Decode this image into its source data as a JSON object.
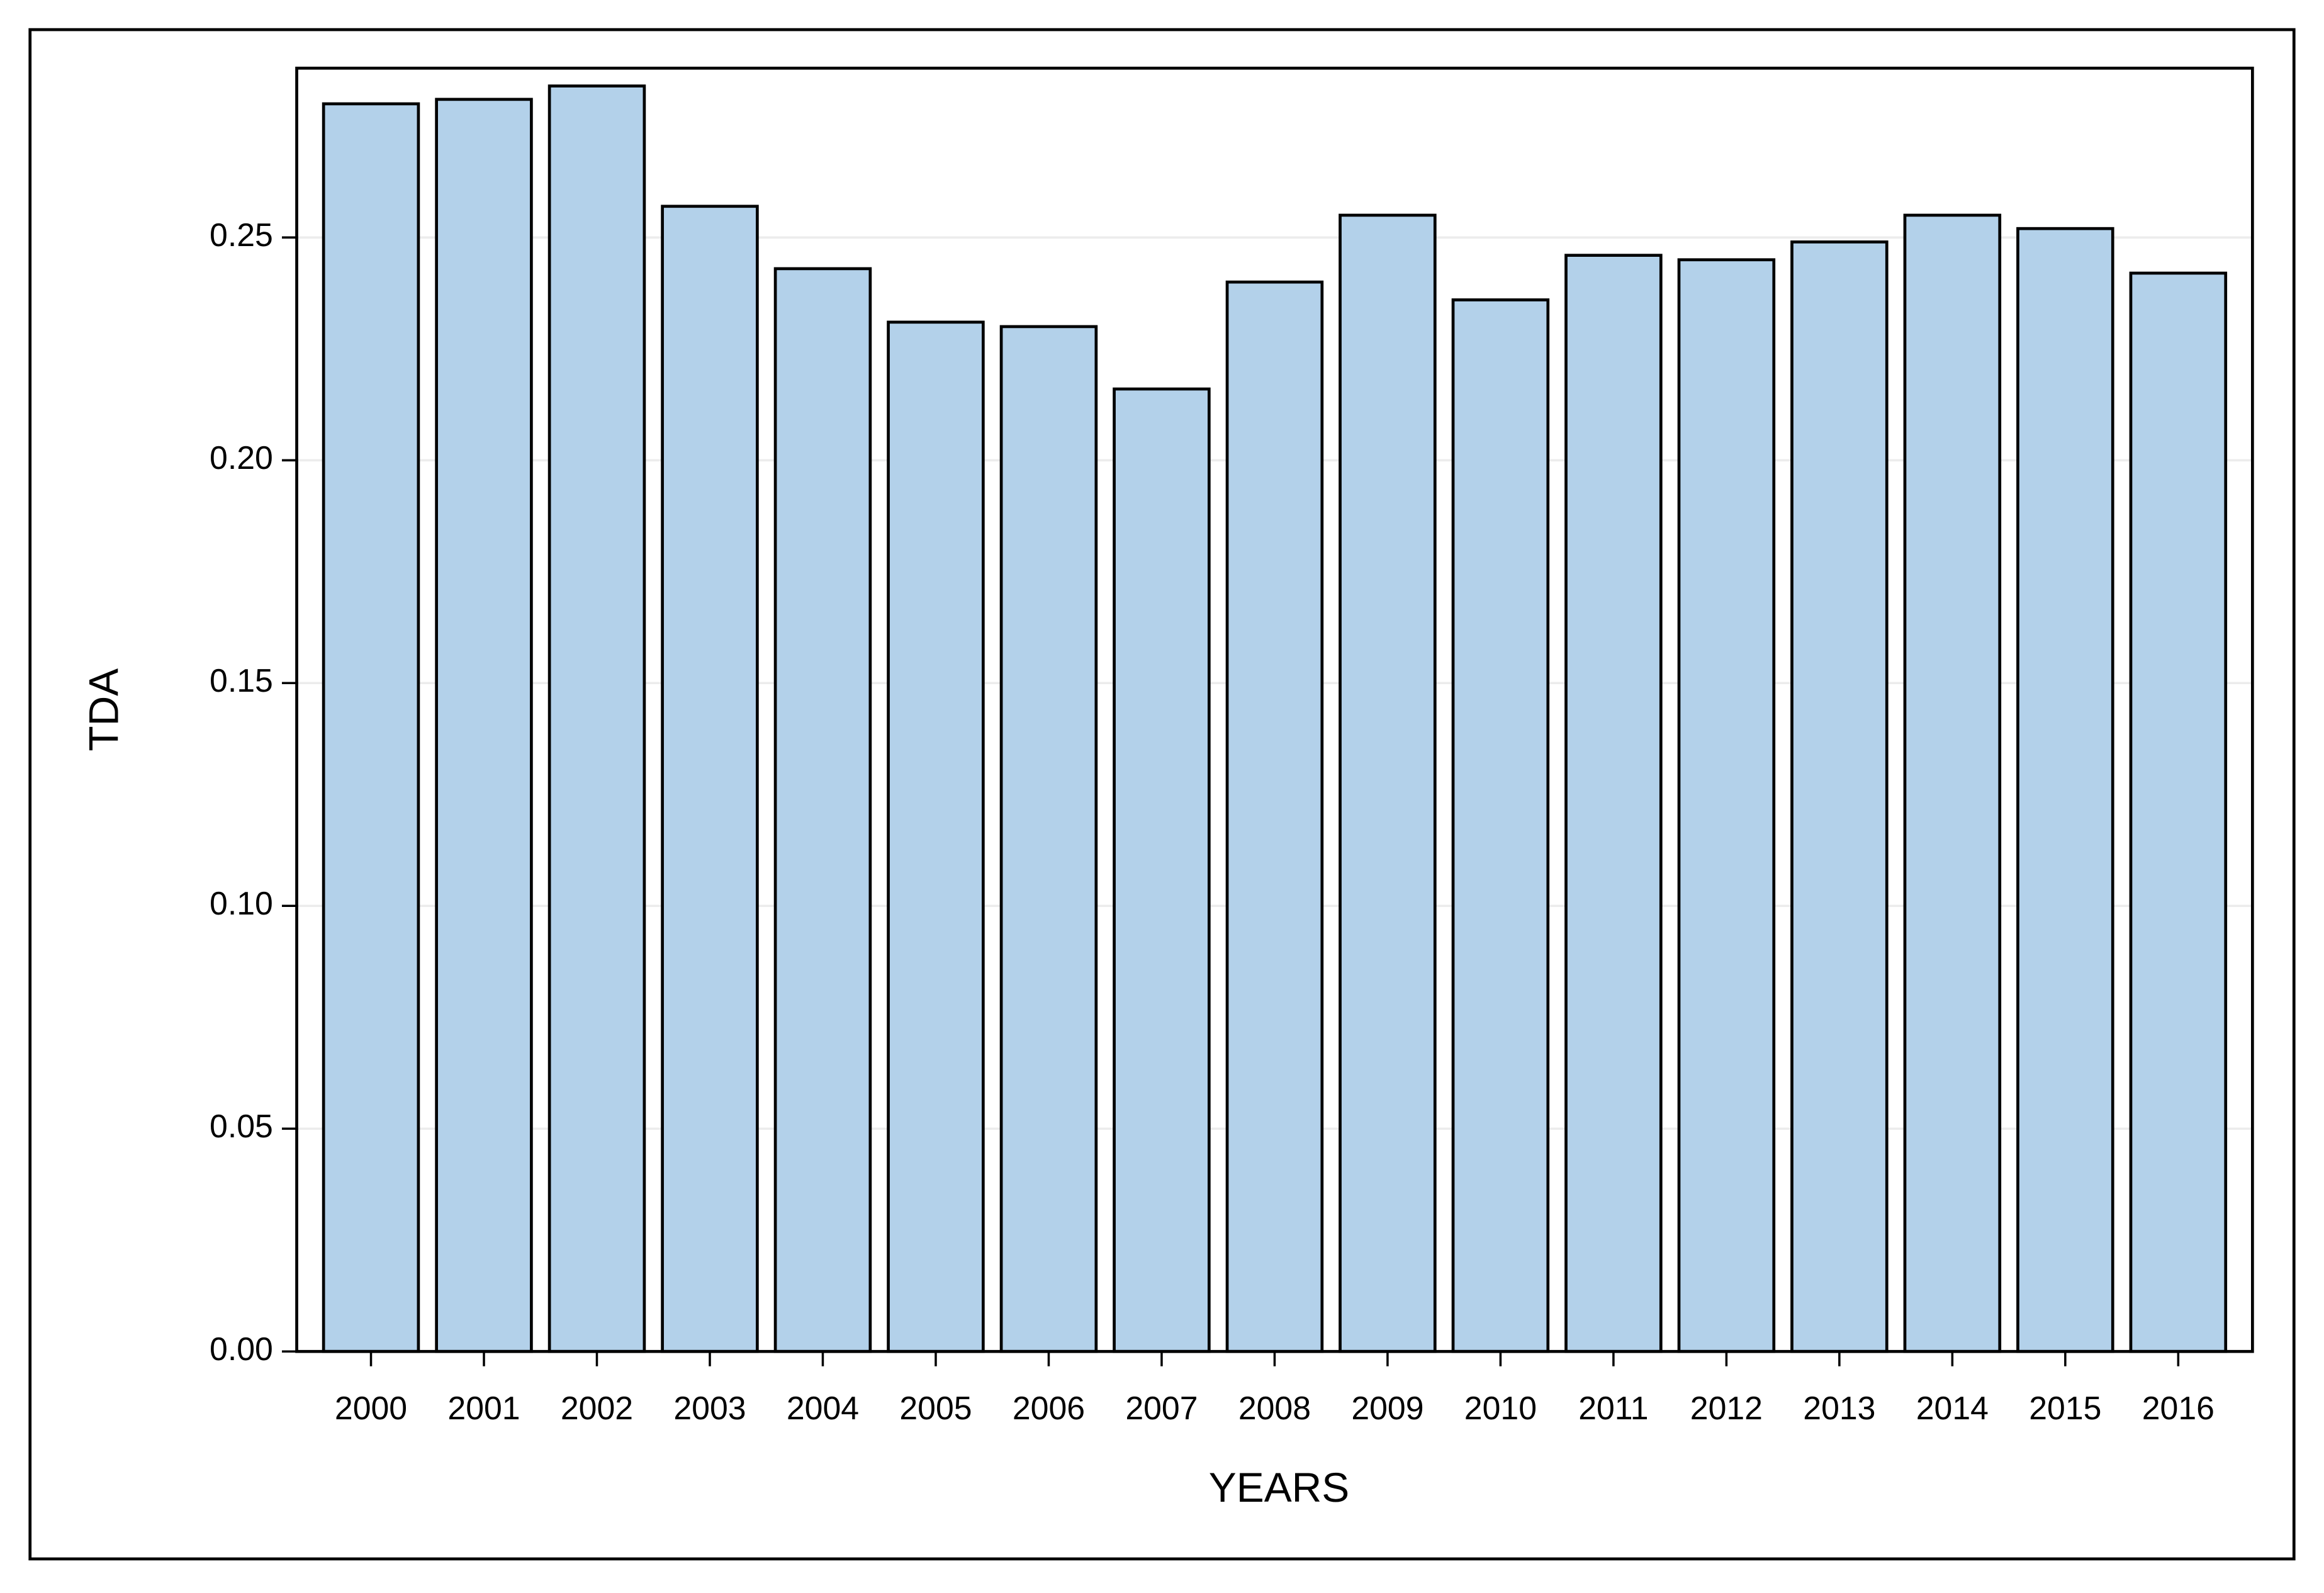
{
  "chart_data": {
    "type": "bar",
    "x_label": "YEARS",
    "y_label": "TDA",
    "categories": [
      "2000",
      "2001",
      "2002",
      "2003",
      "2004",
      "2005",
      "2006",
      "2007",
      "2008",
      "2009",
      "2010",
      "2011",
      "2012",
      "2013",
      "2014",
      "2015",
      "2016"
    ],
    "values": [
      0.28,
      0.281,
      0.284,
      0.257,
      0.243,
      0.231,
      0.23,
      0.216,
      0.24,
      0.255,
      0.236,
      0.246,
      0.245,
      0.249,
      0.255,
      0.252,
      0.242
    ],
    "color": "#b3d1ea",
    "ylim": [
      0,
      0.288
    ],
    "yticks": [
      {
        "value": 0,
        "label": "0.00"
      },
      0.05,
      {
        "value": 0.1,
        "label": "0.10"
      },
      0.15,
      {
        "value": 0.2,
        "label": "0.20"
      },
      0.25
    ],
    "grid": true
  }
}
